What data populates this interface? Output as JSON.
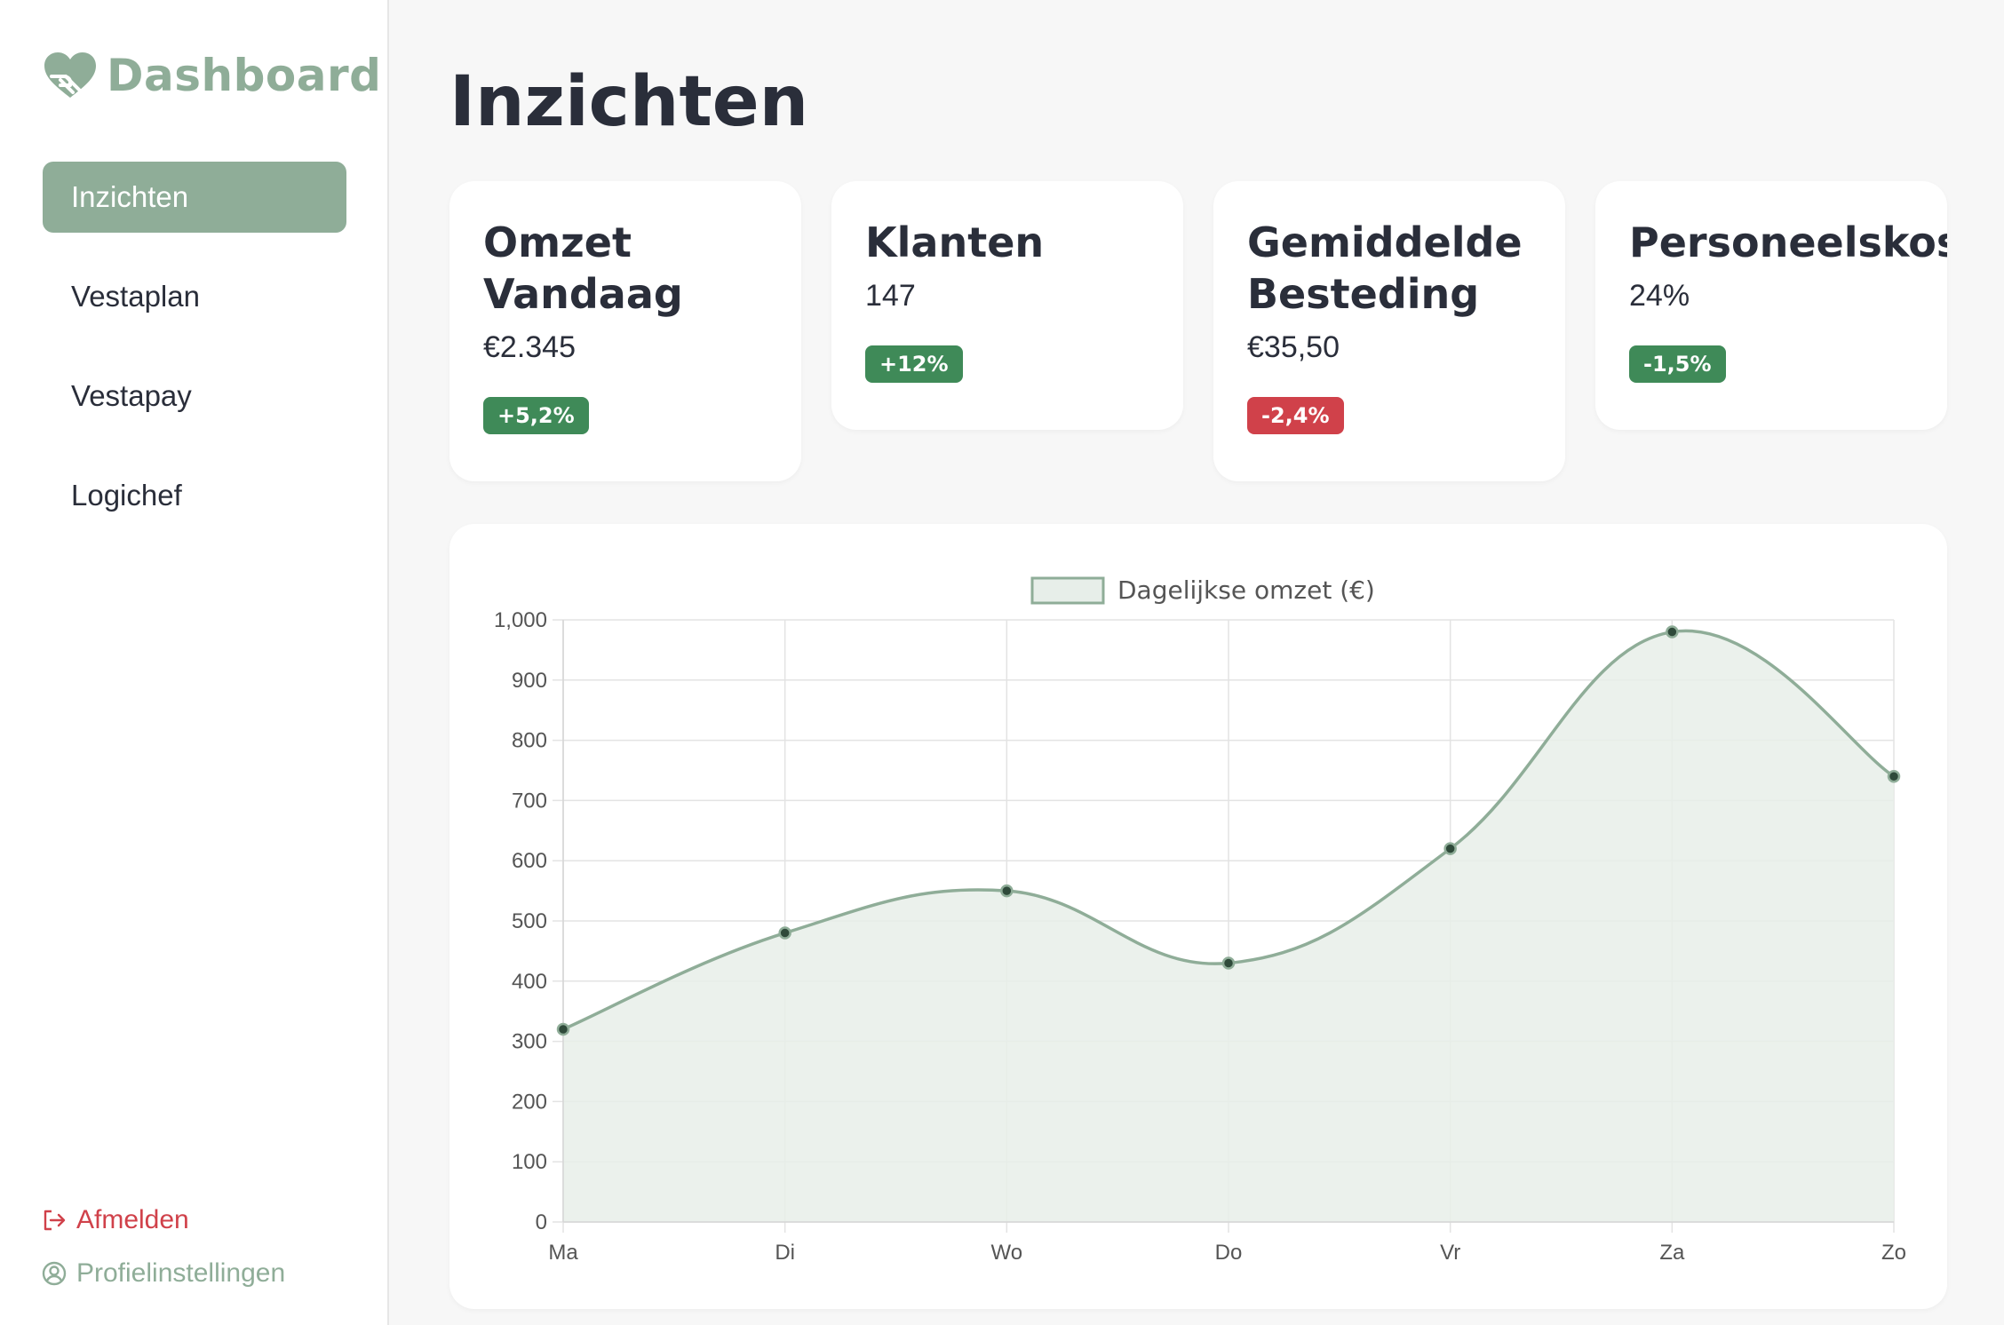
{
  "sidebar": {
    "logo_text": "Dashboard",
    "logo_icon": "heart-hand-icon",
    "nav": [
      {
        "label": "Inzichten",
        "active": true
      },
      {
        "label": "Vestaplan",
        "active": false
      },
      {
        "label": "Vestapay",
        "active": false
      },
      {
        "label": "Logichef",
        "active": false
      }
    ],
    "logout_label": "Afmelden",
    "logout_icon": "logout-icon",
    "profile_label": "Profielinstellingen",
    "profile_icon": "user-circle-icon"
  },
  "main": {
    "title": "Inzichten",
    "cards": [
      {
        "title": "Omzet Vandaag",
        "value": "€2.345",
        "change": "+5,2%",
        "trend": "positive"
      },
      {
        "title": "Klanten",
        "value": "147",
        "change": "+12%",
        "trend": "positive"
      },
      {
        "title": "Gemiddelde Besteding",
        "value": "€35,50",
        "change": "-2,4%",
        "trend": "negative"
      },
      {
        "title": "Personeelskost",
        "value": "24%",
        "change": "-1,5%",
        "trend": "positive"
      }
    ]
  },
  "colors": {
    "accent": "#8fad98",
    "positive": "#3f8a58",
    "negative": "#d0414a",
    "text": "#2a2e3a"
  },
  "chart_data": {
    "type": "area",
    "categories": [
      "Ma",
      "Di",
      "Wo",
      "Do",
      "Vr",
      "Za",
      "Zo"
    ],
    "series": [
      {
        "name": "Dagelijkse omzet (€)",
        "values": [
          320,
          480,
          550,
          430,
          620,
          980,
          740
        ]
      }
    ],
    "ylim": [
      0,
      1000
    ],
    "yticks": [
      0,
      100,
      200,
      300,
      400,
      500,
      600,
      700,
      800,
      900,
      1000
    ],
    "ytick_labels": [
      "0",
      "100",
      "200",
      "300",
      "400",
      "500",
      "600",
      "700",
      "800",
      "900",
      "1,000"
    ],
    "grid": true,
    "legend": "top-center",
    "smooth": true,
    "line_color": "#8fad98",
    "fill_color": "#e7eee9",
    "point_color": "#2f4a3a"
  }
}
